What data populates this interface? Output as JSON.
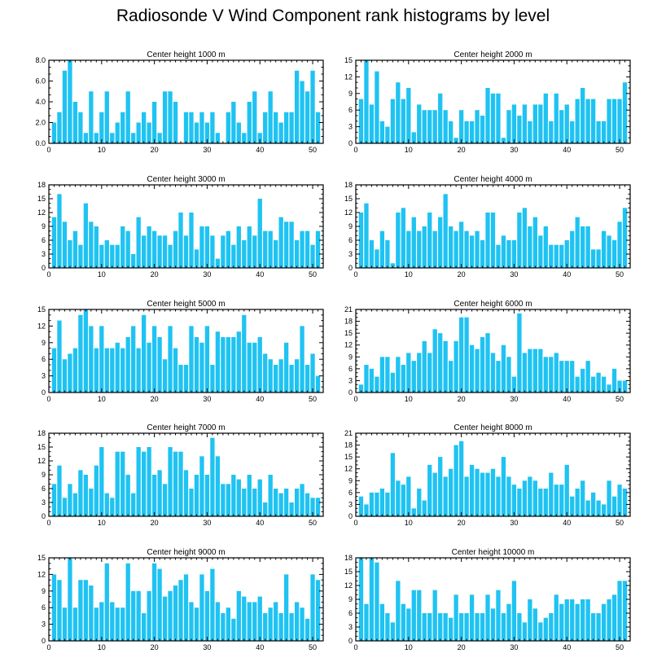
{
  "title": "Radiosonde V Wind Component rank histograms by level",
  "bar_color": "#1fc3f2",
  "chart_data": [
    {
      "type": "bar",
      "title": "Center height 1000 m",
      "x": [
        1,
        2,
        3,
        4,
        5,
        6,
        7,
        8,
        9,
        10,
        11,
        12,
        13,
        14,
        15,
        16,
        17,
        18,
        19,
        20,
        21,
        22,
        23,
        24,
        25,
        26,
        27,
        28,
        29,
        30,
        31,
        32,
        33,
        34,
        35,
        36,
        37,
        38,
        39,
        40,
        41,
        42,
        43,
        44,
        45,
        46,
        47,
        48,
        49,
        50,
        51
      ],
      "values": [
        2,
        3,
        7,
        8,
        4,
        3,
        1,
        5,
        1,
        3,
        5,
        1,
        2,
        3,
        5,
        1,
        2,
        3,
        2,
        4,
        1,
        5,
        5,
        4,
        0,
        3,
        3,
        2,
        3,
        2,
        3,
        1,
        0,
        3,
        4,
        2,
        1,
        4,
        5,
        1,
        3,
        5,
        3,
        2,
        3,
        3,
        7,
        6,
        5,
        7,
        3
      ],
      "xlim": [
        0,
        52
      ],
      "ylim": [
        0,
        8
      ],
      "yticks": [
        "0.0",
        "2.0",
        "4.0",
        "6.0",
        "8.0"
      ],
      "ytick_values": [
        0,
        2,
        4,
        6,
        8
      ],
      "xticks": [
        0,
        10,
        20,
        30,
        40,
        50
      ]
    },
    {
      "type": "bar",
      "title": "Center height 2000 m",
      "x": [
        1,
        2,
        3,
        4,
        5,
        6,
        7,
        8,
        9,
        10,
        11,
        12,
        13,
        14,
        15,
        16,
        17,
        18,
        19,
        20,
        21,
        22,
        23,
        24,
        25,
        26,
        27,
        28,
        29,
        30,
        31,
        32,
        33,
        34,
        35,
        36,
        37,
        38,
        39,
        40,
        41,
        42,
        43,
        44,
        45,
        46,
        47,
        48,
        49,
        50,
        51
      ],
      "values": [
        8,
        15,
        7,
        13,
        4,
        3,
        8,
        11,
        8,
        10,
        2,
        7,
        6,
        6,
        6,
        9,
        6,
        4,
        1,
        6,
        4,
        4,
        6,
        5,
        10,
        9,
        9,
        1,
        6,
        7,
        5,
        7,
        4,
        7,
        7,
        9,
        4,
        9,
        6,
        7,
        4,
        8,
        10,
        8,
        8,
        4,
        4,
        8,
        8,
        8,
        11
      ],
      "xlim": [
        0,
        52
      ],
      "ylim": [
        0,
        15
      ],
      "yticks": [
        "0",
        "3",
        "6",
        "9",
        "12",
        "15"
      ],
      "ytick_values": [
        0,
        3,
        6,
        9,
        12,
        15
      ],
      "xticks": [
        0,
        10,
        20,
        30,
        40,
        50
      ]
    },
    {
      "type": "bar",
      "title": "Center height 3000 m",
      "x": [
        1,
        2,
        3,
        4,
        5,
        6,
        7,
        8,
        9,
        10,
        11,
        12,
        13,
        14,
        15,
        16,
        17,
        18,
        19,
        20,
        21,
        22,
        23,
        24,
        25,
        26,
        27,
        28,
        29,
        30,
        31,
        32,
        33,
        34,
        35,
        36,
        37,
        38,
        39,
        40,
        41,
        42,
        43,
        44,
        45,
        46,
        47,
        48,
        49,
        50,
        51
      ],
      "values": [
        11,
        16,
        10,
        6,
        8,
        5,
        14,
        10,
        9,
        5,
        6,
        5,
        5,
        9,
        8,
        3,
        11,
        7,
        9,
        8,
        7,
        7,
        5,
        8,
        12,
        7,
        12,
        4,
        9,
        9,
        7,
        2,
        7,
        8,
        5,
        9,
        6,
        9,
        7,
        15,
        8,
        8,
        6,
        11,
        10,
        10,
        6,
        8,
        8,
        5,
        8
      ],
      "xlim": [
        0,
        52
      ],
      "ylim": [
        0,
        18
      ],
      "yticks": [
        "0",
        "3",
        "6",
        "9",
        "12",
        "15",
        "18"
      ],
      "ytick_values": [
        0,
        3,
        6,
        9,
        12,
        15,
        18
      ],
      "xticks": [
        0,
        10,
        20,
        30,
        40,
        50
      ]
    },
    {
      "type": "bar",
      "title": "Center height 4000 m",
      "x": [
        1,
        2,
        3,
        4,
        5,
        6,
        7,
        8,
        9,
        10,
        11,
        12,
        13,
        14,
        15,
        16,
        17,
        18,
        19,
        20,
        21,
        22,
        23,
        24,
        25,
        26,
        27,
        28,
        29,
        30,
        31,
        32,
        33,
        34,
        35,
        36,
        37,
        38,
        39,
        40,
        41,
        42,
        43,
        44,
        45,
        46,
        47,
        48,
        49,
        50,
        51
      ],
      "values": [
        12,
        14,
        6,
        4,
        8,
        6,
        1,
        12,
        13,
        8,
        11,
        8,
        9,
        12,
        8,
        11,
        16,
        9,
        8,
        10,
        8,
        7,
        8,
        6,
        12,
        12,
        5,
        7,
        6,
        6,
        12,
        13,
        9,
        11,
        7,
        9,
        5,
        5,
        5,
        6,
        8,
        11,
        9,
        9,
        4,
        4,
        8,
        7,
        6,
        10,
        13
      ],
      "xlim": [
        0,
        52
      ],
      "ylim": [
        0,
        18
      ],
      "yticks": [
        "0",
        "3",
        "6",
        "9",
        "12",
        "15",
        "18"
      ],
      "ytick_values": [
        0,
        3,
        6,
        9,
        12,
        15,
        18
      ],
      "xticks": [
        0,
        10,
        20,
        30,
        40,
        50
      ]
    },
    {
      "type": "bar",
      "title": "Center height 5000 m",
      "x": [
        1,
        2,
        3,
        4,
        5,
        6,
        7,
        8,
        9,
        10,
        11,
        12,
        13,
        14,
        15,
        16,
        17,
        18,
        19,
        20,
        21,
        22,
        23,
        24,
        25,
        26,
        27,
        28,
        29,
        30,
        31,
        32,
        33,
        34,
        35,
        36,
        37,
        38,
        39,
        40,
        41,
        42,
        43,
        44,
        45,
        46,
        47,
        48,
        49,
        50,
        51
      ],
      "values": [
        8,
        13,
        6,
        7,
        8,
        14,
        15,
        12,
        8,
        12,
        8,
        8,
        9,
        8,
        10,
        12,
        8,
        14,
        9,
        12,
        10,
        6,
        12,
        8,
        5,
        5,
        12,
        10,
        9,
        12,
        5,
        11,
        10,
        10,
        10,
        11,
        14,
        9,
        9,
        10,
        7,
        6,
        5,
        6,
        9,
        5,
        6,
        12,
        5,
        7,
        3
      ],
      "xlim": [
        0,
        52
      ],
      "ylim": [
        0,
        15
      ],
      "yticks": [
        "0",
        "3",
        "6",
        "9",
        "12",
        "15"
      ],
      "ytick_values": [
        0,
        3,
        6,
        9,
        12,
        15
      ],
      "xticks": [
        0,
        10,
        20,
        30,
        40,
        50
      ]
    },
    {
      "type": "bar",
      "title": "Center height 6000 m",
      "x": [
        1,
        2,
        3,
        4,
        5,
        6,
        7,
        8,
        9,
        10,
        11,
        12,
        13,
        14,
        15,
        16,
        17,
        18,
        19,
        20,
        21,
        22,
        23,
        24,
        25,
        26,
        27,
        28,
        29,
        30,
        31,
        32,
        33,
        34,
        35,
        36,
        37,
        38,
        39,
        40,
        41,
        42,
        43,
        44,
        45,
        46,
        47,
        48,
        49,
        50,
        51
      ],
      "values": [
        2,
        7,
        6,
        4,
        9,
        9,
        5,
        9,
        7,
        10,
        8,
        10,
        13,
        10,
        16,
        15,
        13,
        8,
        13,
        19,
        19,
        12,
        11,
        14,
        15,
        10,
        8,
        12,
        9,
        4,
        20,
        10,
        11,
        11,
        11,
        9,
        9,
        10,
        8,
        8,
        8,
        4,
        6,
        8,
        4,
        5,
        4,
        2,
        6,
        3,
        3
      ],
      "xlim": [
        0,
        52
      ],
      "ylim": [
        0,
        21
      ],
      "yticks": [
        "0",
        "3",
        "6",
        "9",
        "12",
        "15",
        "18",
        "21"
      ],
      "ytick_values": [
        0,
        3,
        6,
        9,
        12,
        15,
        18,
        21
      ],
      "xticks": [
        0,
        10,
        20,
        30,
        40,
        50
      ]
    },
    {
      "type": "bar",
      "title": "Center height 7000 m",
      "x": [
        1,
        2,
        3,
        4,
        5,
        6,
        7,
        8,
        9,
        10,
        11,
        12,
        13,
        14,
        15,
        16,
        17,
        18,
        19,
        20,
        21,
        22,
        23,
        24,
        25,
        26,
        27,
        28,
        29,
        30,
        31,
        32,
        33,
        34,
        35,
        36,
        37,
        38,
        39,
        40,
        41,
        42,
        43,
        44,
        45,
        46,
        47,
        48,
        49,
        50,
        51
      ],
      "values": [
        7,
        11,
        4,
        7,
        5,
        10,
        9,
        6,
        11,
        15,
        5,
        4,
        14,
        14,
        9,
        5,
        15,
        14,
        15,
        9,
        10,
        7,
        15,
        14,
        14,
        10,
        6,
        9,
        13,
        9,
        17,
        13,
        7,
        7,
        9,
        8,
        6,
        9,
        6,
        8,
        3,
        9,
        6,
        5,
        6,
        3,
        6,
        7,
        5,
        4,
        4
      ],
      "xlim": [
        0,
        52
      ],
      "ylim": [
        0,
        18
      ],
      "yticks": [
        "0",
        "3",
        "6",
        "9",
        "12",
        "15",
        "18"
      ],
      "ytick_values": [
        0,
        3,
        6,
        9,
        12,
        15,
        18
      ],
      "xticks": [
        0,
        10,
        20,
        30,
        40,
        50
      ]
    },
    {
      "type": "bar",
      "title": "Center height 8000 m",
      "x": [
        1,
        2,
        3,
        4,
        5,
        6,
        7,
        8,
        9,
        10,
        11,
        12,
        13,
        14,
        15,
        16,
        17,
        18,
        19,
        20,
        21,
        22,
        23,
        24,
        25,
        26,
        27,
        28,
        29,
        30,
        31,
        32,
        33,
        34,
        35,
        36,
        37,
        38,
        39,
        40,
        41,
        42,
        43,
        44,
        45,
        46,
        47,
        48,
        49,
        50,
        51
      ],
      "values": [
        5,
        3,
        6,
        6,
        7,
        6,
        16,
        9,
        8,
        10,
        2,
        7,
        4,
        13,
        11,
        15,
        10,
        12,
        18,
        19,
        10,
        13,
        12,
        11,
        11,
        12,
        10,
        15,
        10,
        8,
        7,
        9,
        10,
        9,
        7,
        7,
        11,
        8,
        8,
        13,
        5,
        7,
        9,
        4,
        6,
        4,
        3,
        9,
        5,
        8,
        7
      ],
      "xlim": [
        0,
        52
      ],
      "ylim": [
        0,
        21
      ],
      "yticks": [
        "0",
        "3",
        "6",
        "9",
        "12",
        "15",
        "18",
        "21"
      ],
      "ytick_values": [
        0,
        3,
        6,
        9,
        12,
        15,
        18,
        21
      ],
      "xticks": [
        0,
        10,
        20,
        30,
        40,
        50
      ]
    },
    {
      "type": "bar",
      "title": "Center height 9000 m",
      "x": [
        1,
        2,
        3,
        4,
        5,
        6,
        7,
        8,
        9,
        10,
        11,
        12,
        13,
        14,
        15,
        16,
        17,
        18,
        19,
        20,
        21,
        22,
        23,
        24,
        25,
        26,
        27,
        28,
        29,
        30,
        31,
        32,
        33,
        34,
        35,
        36,
        37,
        38,
        39,
        40,
        41,
        42,
        43,
        44,
        45,
        46,
        47,
        48,
        49,
        50,
        51
      ],
      "values": [
        12,
        11,
        6,
        15,
        6,
        11,
        11,
        10,
        6,
        7,
        14,
        7,
        6,
        6,
        14,
        9,
        9,
        5,
        9,
        14,
        13,
        8,
        9,
        10,
        11,
        12,
        7,
        6,
        12,
        9,
        13,
        7,
        5,
        6,
        4,
        9,
        8,
        7,
        7,
        8,
        5,
        6,
        7,
        5,
        12,
        5,
        7,
        6,
        4,
        12,
        11
      ],
      "xlim": [
        0,
        52
      ],
      "ylim": [
        0,
        15
      ],
      "yticks": [
        "0",
        "3",
        "6",
        "9",
        "12",
        "15"
      ],
      "ytick_values": [
        0,
        3,
        6,
        9,
        12,
        15
      ],
      "xticks": [
        0,
        10,
        20,
        30,
        40,
        50
      ]
    },
    {
      "type": "bar",
      "title": "Center height 10000 m",
      "x": [
        1,
        2,
        3,
        4,
        5,
        6,
        7,
        8,
        9,
        10,
        11,
        12,
        13,
        14,
        15,
        16,
        17,
        18,
        19,
        20,
        21,
        22,
        23,
        24,
        25,
        26,
        27,
        28,
        29,
        30,
        31,
        32,
        33,
        34,
        35,
        36,
        37,
        38,
        39,
        40,
        41,
        42,
        43,
        44,
        45,
        46,
        47,
        48,
        49,
        50,
        51
      ],
      "values": [
        18,
        8,
        18,
        17,
        8,
        6,
        4,
        13,
        8,
        7,
        11,
        11,
        6,
        6,
        11,
        6,
        6,
        5,
        10,
        6,
        6,
        10,
        6,
        6,
        10,
        7,
        11,
        6,
        8,
        13,
        6,
        4,
        9,
        7,
        4,
        5,
        6,
        10,
        8,
        9,
        9,
        8,
        9,
        9,
        6,
        6,
        8,
        9,
        10,
        13,
        13
      ],
      "xlim": [
        0,
        52
      ],
      "ylim": [
        0,
        18
      ],
      "yticks": [
        "0",
        "3",
        "6",
        "9",
        "12",
        "15",
        "18"
      ],
      "ytick_values": [
        0,
        3,
        6,
        9,
        12,
        15,
        18
      ],
      "xticks": [
        0,
        10,
        20,
        30,
        40,
        50
      ]
    }
  ]
}
